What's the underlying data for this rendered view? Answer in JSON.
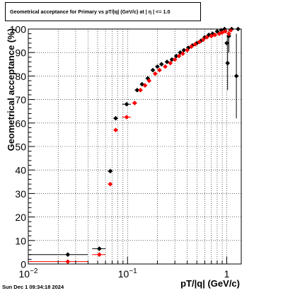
{
  "chart_data": {
    "type": "scatter",
    "title": "Geometrical acceptance for Primary vs pT/|q| (GeV/c) at |  η  | <= 1.0",
    "xlabel": "pT/|q| (GeV/c)",
    "ylabel": "Geometrical acceptance (%)",
    "xscale": "log",
    "xlim": [
      0.01,
      1.4
    ],
    "ylim": [
      0,
      100
    ],
    "grid": true,
    "x_ticks": [
      {
        "value": 0.01,
        "base": "10",
        "exp": "−2"
      },
      {
        "value": 0.1,
        "base": "10",
        "exp": "−1"
      },
      {
        "value": 1,
        "base": "1",
        "exp": ""
      }
    ],
    "y_ticks": [
      0,
      10,
      20,
      30,
      40,
      50,
      60,
      70,
      80,
      90,
      100
    ],
    "series": [
      {
        "color": "#000000",
        "points": [
          [
            0.025,
            4.0,
            0.015
          ],
          [
            0.052,
            6.5,
            0.008
          ],
          [
            0.067,
            39.5,
            0.004
          ],
          [
            0.076,
            62.0,
            0.004
          ],
          [
            0.098,
            68.0,
            0.01
          ],
          [
            0.125,
            74.0,
            0.007
          ],
          [
            0.14,
            76.5,
            0.007
          ],
          [
            0.16,
            79.0,
            0.008
          ],
          [
            0.18,
            82.5,
            0.008
          ],
          [
            0.2,
            84.0,
            0.009
          ],
          [
            0.22,
            85.0,
            0.01
          ],
          [
            0.25,
            86.0,
            0.012
          ],
          [
            0.28,
            87.0,
            0.012
          ],
          [
            0.31,
            88.5,
            0.013
          ],
          [
            0.34,
            90.0,
            0.014
          ],
          [
            0.37,
            91.0,
            0.015
          ],
          [
            0.41,
            92.0,
            0.016
          ],
          [
            0.45,
            93.0,
            0.018
          ],
          [
            0.5,
            94.0,
            0.02
          ],
          [
            0.55,
            95.0,
            0.022
          ],
          [
            0.6,
            96.5,
            0.024
          ],
          [
            0.66,
            97.5,
            0.026
          ],
          [
            0.72,
            98.0,
            0.028
          ],
          [
            0.8,
            99.0,
            0.03
          ],
          [
            0.88,
            99.5,
            0.035
          ],
          [
            0.95,
            100.0,
            0.04
          ],
          [
            1.0,
            94.0,
            0.03
          ],
          [
            1.05,
            97.0,
            0.03
          ],
          [
            1.02,
            85.5,
            0.03
          ],
          [
            1.12,
            100.0,
            0.04
          ],
          [
            1.25,
            80.0,
            0.05
          ],
          [
            1.3,
            100.0,
            0.05
          ]
        ]
      },
      {
        "color": "#ff0000",
        "points": [
          [
            0.025,
            1.0,
            0.015
          ],
          [
            0.052,
            4.0,
            0.008
          ],
          [
            0.067,
            34.0,
            0.004
          ],
          [
            0.076,
            57.0,
            0.004
          ],
          [
            0.098,
            62.5,
            0.01
          ],
          [
            0.118,
            68.5,
            0.007
          ],
          [
            0.135,
            74.0,
            0.007
          ],
          [
            0.15,
            76.0,
            0.008
          ],
          [
            0.165,
            78.0,
            0.008
          ],
          [
            0.19,
            81.0,
            0.009
          ],
          [
            0.21,
            82.5,
            0.01
          ],
          [
            0.24,
            84.0,
            0.011
          ],
          [
            0.27,
            85.5,
            0.012
          ],
          [
            0.3,
            87.0,
            0.013
          ],
          [
            0.33,
            88.5,
            0.014
          ],
          [
            0.36,
            89.5,
            0.015
          ],
          [
            0.4,
            91.0,
            0.016
          ],
          [
            0.44,
            92.5,
            0.018
          ],
          [
            0.48,
            93.5,
            0.02
          ],
          [
            0.53,
            94.5,
            0.022
          ],
          [
            0.58,
            95.5,
            0.024
          ],
          [
            0.63,
            96.5,
            0.026
          ],
          [
            0.7,
            97.0,
            0.028
          ],
          [
            0.76,
            97.5,
            0.03
          ],
          [
            0.84,
            98.0,
            0.032
          ],
          [
            0.9,
            98.5,
            0.035
          ],
          [
            0.97,
            99.0,
            0.04
          ],
          [
            1.05,
            98.0,
            0.04
          ],
          [
            1.1,
            99.5,
            0.04
          ]
        ]
      }
    ]
  },
  "footer": "Sun Dec  1 09:34:18 2024"
}
